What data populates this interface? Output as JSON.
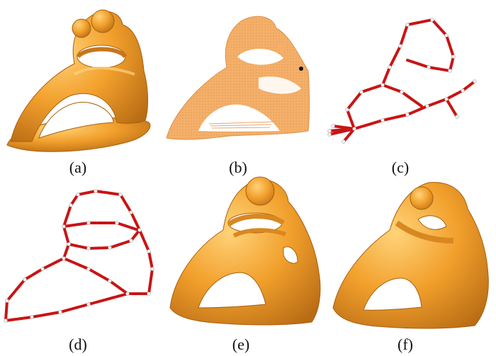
{
  "figure": {
    "panels": [
      {
        "id": "a",
        "label": "(a)",
        "kind": "surface-model"
      },
      {
        "id": "b",
        "label": "(b)",
        "kind": "point-cloud"
      },
      {
        "id": "c",
        "label": "(c)",
        "kind": "skeleton-graph"
      },
      {
        "id": "d",
        "label": "(d)",
        "kind": "skeleton-graph"
      },
      {
        "id": "e",
        "label": "(e)",
        "kind": "surface-model"
      },
      {
        "id": "f",
        "label": "(f)",
        "kind": "surface-model"
      }
    ],
    "colors": {
      "surface": "#f2a02c",
      "surface_dark": "#c8761a",
      "surface_light": "#ffd37a",
      "point_cloud": "#f4b06a",
      "skeleton_edge": "#c81414",
      "skeleton_node": "#f2f2f2"
    }
  }
}
